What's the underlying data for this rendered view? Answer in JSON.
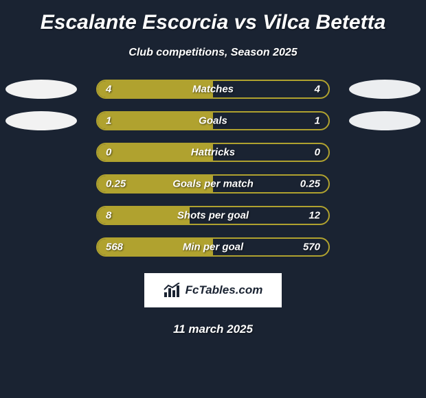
{
  "title": "Escalante Escorcia vs Vilca Betetta",
  "subtitle": "Club competitions, Season 2025",
  "date": "11 march 2025",
  "logo_text": "FcTables.com",
  "background_color": "#1a2332",
  "ellipse_colors": {
    "left": "#f2f2f2",
    "right": "#eceef0"
  },
  "bars": [
    {
      "label": "Matches",
      "left_val": "4",
      "right_val": "4",
      "fill_pct": 50,
      "fill_color": "#b0a22f",
      "border_color": "#b0a22f",
      "ellipse_left": true,
      "ellipse_right": true
    },
    {
      "label": "Goals",
      "left_val": "1",
      "right_val": "1",
      "fill_pct": 50,
      "fill_color": "#b0a22f",
      "border_color": "#b0a22f",
      "ellipse_left": true,
      "ellipse_right": true
    },
    {
      "label": "Hattricks",
      "left_val": "0",
      "right_val": "0",
      "fill_pct": 50,
      "fill_color": "#b0a22f",
      "border_color": "#b0a22f",
      "ellipse_left": false,
      "ellipse_right": false
    },
    {
      "label": "Goals per match",
      "left_val": "0.25",
      "right_val": "0.25",
      "fill_pct": 50,
      "fill_color": "#b0a22f",
      "border_color": "#b0a22f",
      "ellipse_left": false,
      "ellipse_right": false
    },
    {
      "label": "Shots per goal",
      "left_val": "8",
      "right_val": "12",
      "fill_pct": 40,
      "fill_color": "#b0a22f",
      "border_color": "#b0a22f",
      "ellipse_left": false,
      "ellipse_right": false
    },
    {
      "label": "Min per goal",
      "left_val": "568",
      "right_val": "570",
      "fill_pct": 49.9,
      "fill_color": "#b0a22f",
      "border_color": "#b0a22f",
      "ellipse_left": false,
      "ellipse_right": false
    }
  ]
}
